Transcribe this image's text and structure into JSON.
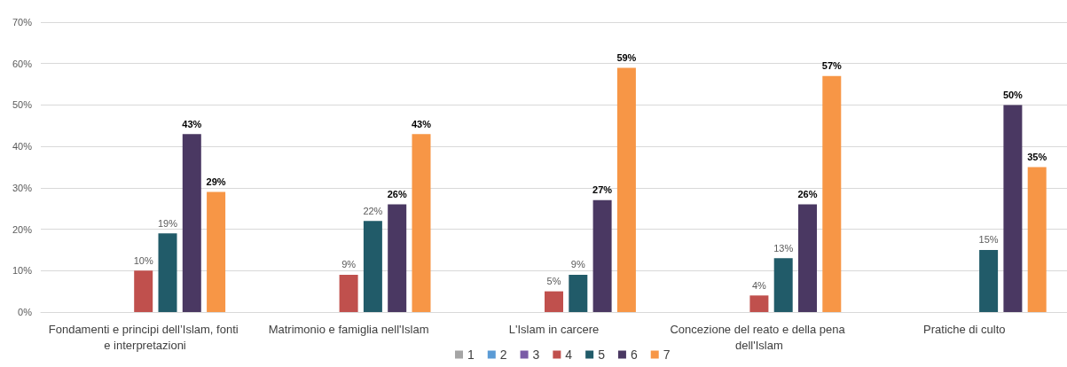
{
  "chart_data": {
    "type": "bar",
    "categories": [
      "Fondamenti e principi dell’Islam, fonti e interpretazioni",
      "Matrimonio e famiglia nell'Islam",
      "L'Islam in carcere",
      "Concezione del reato e della pena dell'Islam",
      "Pratiche di culto"
    ],
    "series": [
      {
        "name": "1",
        "color": "#a5a5a5",
        "values": [
          null,
          null,
          null,
          null,
          null
        ]
      },
      {
        "name": "2",
        "color": "#5b9bd5",
        "values": [
          null,
          null,
          null,
          null,
          null
        ]
      },
      {
        "name": "3",
        "color": "#7a5ba6",
        "values": [
          null,
          null,
          null,
          null,
          null
        ]
      },
      {
        "name": "4",
        "color": "#c0504d",
        "values": [
          10,
          9,
          5,
          4,
          null
        ],
        "value_labels": [
          "10%",
          "9%",
          "5%",
          "4%",
          null
        ]
      },
      {
        "name": "5",
        "color": "#215b69",
        "values": [
          19,
          22,
          9,
          13,
          15
        ],
        "value_labels": [
          "19%",
          "22%",
          "9%",
          "13%",
          "15%"
        ]
      },
      {
        "name": "6",
        "color": "#4a3862",
        "values": [
          43,
          26,
          27,
          26,
          50
        ],
        "value_labels": [
          "43%",
          "26%",
          "27%",
          "26%",
          "50%"
        ]
      },
      {
        "name": "7",
        "color": "#f79646",
        "values": [
          29,
          43,
          59,
          57,
          35
        ],
        "value_labels": [
          "29%",
          "43%",
          "59%",
          "57%",
          "35%"
        ]
      }
    ],
    "ylim": [
      0,
      70
    ],
    "yticks": [
      {
        "value": 0,
        "label": "0%"
      },
      {
        "value": 10,
        "label": "10%"
      },
      {
        "value": 20,
        "label": "20%"
      },
      {
        "value": 30,
        "label": "30%"
      },
      {
        "value": 40,
        "label": "40%"
      },
      {
        "value": 50,
        "label": "50%"
      },
      {
        "value": 60,
        "label": "60%"
      },
      {
        "value": 70,
        "label": "70%"
      }
    ],
    "grid": "y",
    "legend": "bottom"
  }
}
